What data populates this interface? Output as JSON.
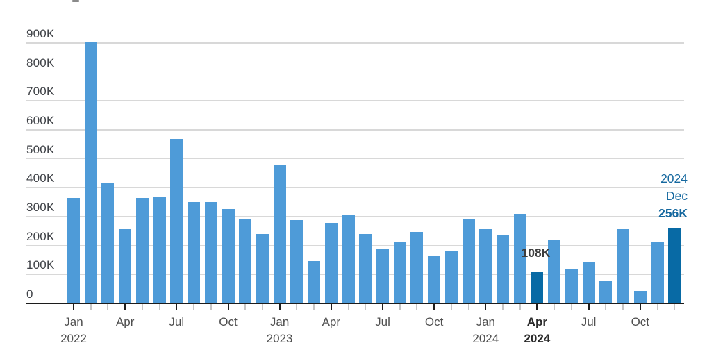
{
  "chart_data": {
    "type": "bar",
    "unit": "thousands",
    "categories": [
      "Jan 2022",
      "Feb 2022",
      "Mar 2022",
      "Apr 2022",
      "May 2022",
      "Jun 2022",
      "Jul 2022",
      "Aug 2022",
      "Sep 2022",
      "Oct 2022",
      "Nov 2022",
      "Dec 2022",
      "Jan 2023",
      "Feb 2023",
      "Mar 2023",
      "Apr 2023",
      "May 2023",
      "Jun 2023",
      "Jul 2023",
      "Aug 2023",
      "Sep 2023",
      "Oct 2023",
      "Nov 2023",
      "Dec 2023",
      "Jan 2024",
      "Feb 2024",
      "Mar 2024",
      "Apr 2024",
      "May 2024",
      "Jun 2024",
      "Jul 2024",
      "Aug 2024",
      "Sep 2024",
      "Oct 2024",
      "Nov 2024",
      "Dec 2024"
    ],
    "values_thousands": [
      363,
      903,
      413,
      255,
      363,
      368,
      566,
      348,
      349,
      324,
      288,
      238,
      477,
      286,
      144,
      276,
      302,
      238,
      184,
      209,
      245,
      162,
      181,
      288,
      254,
      234,
      308,
      108,
      216,
      117,
      142,
      76,
      255,
      42,
      212,
      256
    ],
    "highlight_indices": [
      27,
      35
    ],
    "highlighted_categories": [
      "Apr 2024",
      "Dec 2024"
    ],
    "ylim_thousands": [
      0,
      900
    ],
    "grid": true,
    "y_axis": {
      "ticks": [
        {
          "label": "900K",
          "value_k": 900
        },
        {
          "label": "800K",
          "value_k": 800
        },
        {
          "label": "700K",
          "value_k": 700
        },
        {
          "label": "600K",
          "value_k": 600
        },
        {
          "label": "500K",
          "value_k": 500
        },
        {
          "label": "400K",
          "value_k": 400
        },
        {
          "label": "300K",
          "value_k": 300
        },
        {
          "label": "200K",
          "value_k": 200
        },
        {
          "label": "100K",
          "value_k": 100
        },
        {
          "label": "0",
          "value_k": 0
        }
      ]
    },
    "x_axis": {
      "ticks": [
        {
          "index": 0,
          "month": "Jan",
          "year": "2022",
          "bold": false
        },
        {
          "index": 3,
          "month": "Apr",
          "year": "",
          "bold": false
        },
        {
          "index": 6,
          "month": "Jul",
          "year": "",
          "bold": false
        },
        {
          "index": 9,
          "month": "Oct",
          "year": "",
          "bold": false
        },
        {
          "index": 12,
          "month": "Jan",
          "year": "2023",
          "bold": false
        },
        {
          "index": 15,
          "month": "Apr",
          "year": "",
          "bold": false
        },
        {
          "index": 18,
          "month": "Jul",
          "year": "",
          "bold": false
        },
        {
          "index": 21,
          "month": "Oct",
          "year": "",
          "bold": false
        },
        {
          "index": 24,
          "month": "Jan",
          "year": "2024",
          "bold": false
        },
        {
          "index": 27,
          "month": "Apr",
          "year": "2024",
          "bold": true
        },
        {
          "index": 30,
          "month": "Jul",
          "year": "",
          "bold": false
        },
        {
          "index": 33,
          "month": "Oct",
          "year": "",
          "bold": false
        }
      ]
    },
    "annotations": {
      "apr_2024": {
        "text": "108K",
        "bar_index": 27
      },
      "dec_2024": {
        "lines": [
          "2024",
          "Dec",
          "256K"
        ],
        "bold_line_index": 2,
        "bar_index": 35
      }
    },
    "colors": {
      "bar": "#4e9bd8",
      "bar_highlight": "#086aa5",
      "gridline": "#d8d8d8",
      "axis_line": "#1c1c1c",
      "tick_major": "#1f1f1f",
      "tick_minor": "#c6c6c6",
      "y_label": "#3f4247",
      "x_label": "#4f4f4f",
      "x_label_bold": "#2a2a2a",
      "annotation_dark": "#3d3d3d",
      "annotation_blue": "#15689f"
    }
  }
}
